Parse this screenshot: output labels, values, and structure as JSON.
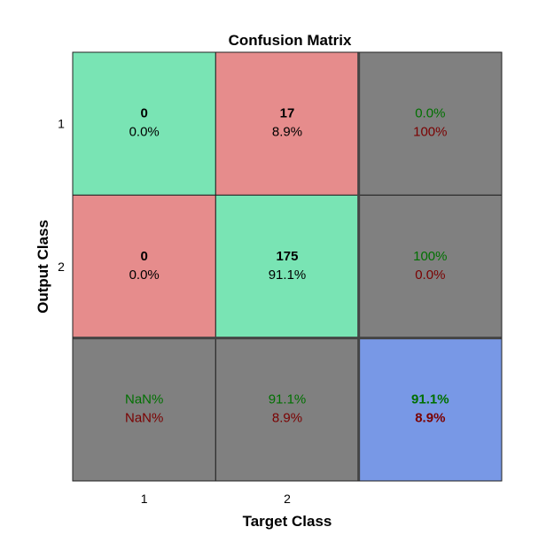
{
  "chart_data": {
    "type": "heatmap",
    "title": "Confusion Matrix",
    "xlabel": "Target Class",
    "ylabel": "Output Class",
    "x_ticks": [
      "1",
      "2"
    ],
    "y_ticks": [
      "1",
      "2"
    ],
    "colors": {
      "correct": "#79e4b4",
      "incorrect": "#e68c8c",
      "summary": "#808080",
      "overall": "#7898e6",
      "text_good": "#007000",
      "text_bad": "#7a0000",
      "text_count": "#000000"
    },
    "matrix_cells": [
      {
        "row": 0,
        "col": 0,
        "kind": "correct",
        "count": "0",
        "percent": "0.0%"
      },
      {
        "row": 0,
        "col": 1,
        "kind": "incorrect",
        "count": "17",
        "percent": "8.9%"
      },
      {
        "row": 1,
        "col": 0,
        "kind": "incorrect",
        "count": "0",
        "percent": "0.0%"
      },
      {
        "row": 1,
        "col": 1,
        "kind": "correct",
        "count": "175",
        "percent": "91.1%"
      }
    ],
    "row_summary": [
      {
        "row": 0,
        "good": "0.0%",
        "bad": "100%"
      },
      {
        "row": 1,
        "good": "100%",
        "bad": "0.0%"
      }
    ],
    "col_summary": [
      {
        "col": 0,
        "good": "NaN%",
        "bad": "NaN%"
      },
      {
        "col": 1,
        "good": "91.1%",
        "bad": "8.9%"
      }
    ],
    "overall": {
      "good": "91.1%",
      "bad": "8.9%"
    }
  }
}
